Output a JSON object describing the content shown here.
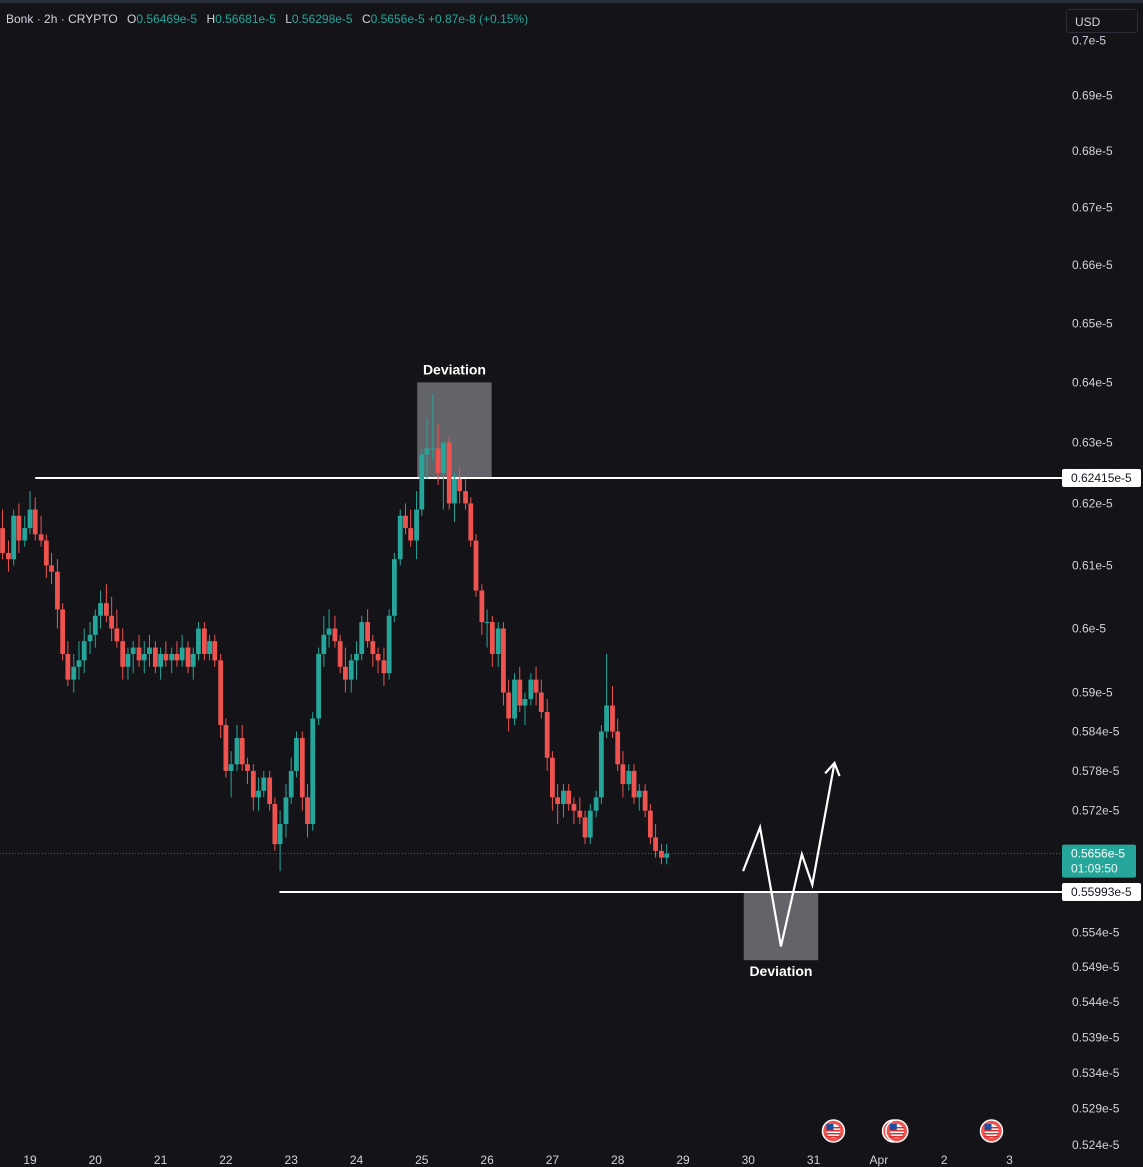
{
  "header": {
    "symbol": "Bonk",
    "interval": "2h",
    "exchange": "CRYPTO",
    "dot": "·",
    "o_label": "O",
    "o_value": "0.56469e-5",
    "h_label": "H",
    "h_value": "0.56681e-5",
    "l_label": "L",
    "l_value": "0.56298e-5",
    "c_label": "C",
    "c_value": "0.5656e-5",
    "change": "+0.87e-8 (+0.15%)"
  },
  "currency_button": "USD",
  "colors": {
    "background": "#131318",
    "up": "#26a69a",
    "down": "#ef5350",
    "axis_text": "#d1d4dc",
    "level_line": "#ffffff",
    "deviation_box": "#7a7b80",
    "current_price_bg": "#26a69a"
  },
  "chart_data": {
    "type": "candlestick",
    "instrument": "Bonk",
    "interval": "2h",
    "x_axis": {
      "tick_labels": [
        "19",
        "20",
        "21",
        "22",
        "23",
        "24",
        "25",
        "26",
        "27",
        "28",
        "29",
        "30",
        "31",
        "Apr",
        "2",
        "3"
      ],
      "range_days": [
        18.5,
        34.0
      ]
    },
    "y_axis": {
      "scale": "log",
      "tick_labels": [
        "0.7e-5",
        "0.69e-5",
        "0.68e-5",
        "0.67e-5",
        "0.66e-5",
        "0.65e-5",
        "0.64e-5",
        "0.63e-5",
        "0.62e-5",
        "0.61e-5",
        "0.6e-5",
        "0.59e-5",
        "0.584e-5",
        "0.578e-5",
        "0.572e-5",
        "0.554e-5",
        "0.549e-5",
        "0.544e-5",
        "0.539e-5",
        "0.534e-5",
        "0.529e-5",
        "0.524e-5"
      ],
      "tick_values": [
        0.7,
        0.69,
        0.68,
        0.67,
        0.66,
        0.65,
        0.64,
        0.63,
        0.62,
        0.61,
        0.6,
        0.59,
        0.584,
        0.578,
        0.572,
        0.554,
        0.549,
        0.544,
        0.539,
        0.534,
        0.529,
        0.524
      ],
      "unit_suffix": "e-5"
    },
    "levels": [
      {
        "price": 0.62415,
        "label": "0.62415e-5",
        "from_day": 19.08
      },
      {
        "price": 0.55993,
        "label": "0.55993e-5",
        "from_day": 22.82
      }
    ],
    "current_price": {
      "price": 0.5656,
      "label": "0.5656e-5",
      "countdown": "01:09:50"
    },
    "annotations": [
      {
        "text": "Deviation",
        "day_start": 24.93,
        "day_end": 26.07,
        "price_top": 0.64,
        "price_bottom": 0.6242,
        "label_position": "top"
      },
      {
        "text": "Deviation",
        "day_start": 29.93,
        "day_end": 31.07,
        "price_top": 0.5599,
        "price_bottom": 0.55,
        "label_position": "bottom"
      }
    ],
    "projection_path": [
      {
        "day": 29.92,
        "price": 0.563
      },
      {
        "day": 30.18,
        "price": 0.5695
      },
      {
        "day": 30.5,
        "price": 0.552
      },
      {
        "day": 30.82,
        "price": 0.5655
      },
      {
        "day": 30.98,
        "price": 0.561
      },
      {
        "day": 31.32,
        "price": 0.5792
      }
    ],
    "event_markers": [
      "US flag",
      "US flag",
      "US flag",
      "US flag"
    ],
    "event_marker_days": [
      31.58,
      32.5,
      32.55,
      34.0
    ],
    "candles": [
      [
        18.5,
        0.622,
        0.623,
        0.614,
        0.616
      ],
      [
        18.58,
        0.616,
        0.619,
        0.611,
        0.612
      ],
      [
        18.67,
        0.612,
        0.614,
        0.609,
        0.611
      ],
      [
        18.75,
        0.611,
        0.619,
        0.61,
        0.618
      ],
      [
        18.83,
        0.618,
        0.62,
        0.612,
        0.614
      ],
      [
        18.92,
        0.614,
        0.618,
        0.613,
        0.616
      ],
      [
        19.0,
        0.616,
        0.622,
        0.615,
        0.619
      ],
      [
        19.08,
        0.619,
        0.621,
        0.614,
        0.615
      ],
      [
        19.17,
        0.615,
        0.618,
        0.613,
        0.614
      ],
      [
        19.25,
        0.614,
        0.615,
        0.608,
        0.61
      ],
      [
        19.33,
        0.61,
        0.612,
        0.607,
        0.609
      ],
      [
        19.42,
        0.609,
        0.611,
        0.6,
        0.603
      ],
      [
        19.5,
        0.603,
        0.604,
        0.595,
        0.596
      ],
      [
        19.58,
        0.596,
        0.598,
        0.591,
        0.592
      ],
      [
        19.67,
        0.592,
        0.596,
        0.59,
        0.594
      ],
      [
        19.75,
        0.594,
        0.598,
        0.592,
        0.595
      ],
      [
        19.83,
        0.595,
        0.6,
        0.593,
        0.598
      ],
      [
        19.92,
        0.598,
        0.601,
        0.596,
        0.599
      ],
      [
        20.0,
        0.599,
        0.603,
        0.597,
        0.602
      ],
      [
        20.08,
        0.602,
        0.606,
        0.6,
        0.604
      ],
      [
        20.17,
        0.604,
        0.607,
        0.601,
        0.602
      ],
      [
        20.25,
        0.602,
        0.605,
        0.598,
        0.6
      ],
      [
        20.33,
        0.6,
        0.603,
        0.597,
        0.598
      ],
      [
        20.42,
        0.598,
        0.6,
        0.592,
        0.594
      ],
      [
        20.5,
        0.594,
        0.597,
        0.592,
        0.596
      ],
      [
        20.58,
        0.596,
        0.598,
        0.593,
        0.597
      ],
      [
        20.67,
        0.597,
        0.599,
        0.594,
        0.595
      ],
      [
        20.75,
        0.595,
        0.598,
        0.593,
        0.596
      ],
      [
        20.83,
        0.596,
        0.599,
        0.594,
        0.597
      ],
      [
        20.92,
        0.597,
        0.598,
        0.593,
        0.594
      ],
      [
        21.0,
        0.594,
        0.597,
        0.592,
        0.596
      ],
      [
        21.08,
        0.596,
        0.598,
        0.594,
        0.595
      ],
      [
        21.17,
        0.595,
        0.597,
        0.593,
        0.596
      ],
      [
        21.25,
        0.596,
        0.598,
        0.594,
        0.595
      ],
      [
        21.33,
        0.595,
        0.599,
        0.594,
        0.597
      ],
      [
        21.42,
        0.597,
        0.598,
        0.593,
        0.594
      ],
      [
        21.5,
        0.594,
        0.597,
        0.592,
        0.596
      ],
      [
        21.58,
        0.596,
        0.601,
        0.595,
        0.6
      ],
      [
        21.67,
        0.6,
        0.601,
        0.595,
        0.596
      ],
      [
        21.75,
        0.596,
        0.599,
        0.595,
        0.598
      ],
      [
        21.83,
        0.598,
        0.599,
        0.594,
        0.595
      ],
      [
        21.92,
        0.595,
        0.596,
        0.583,
        0.585
      ],
      [
        22.0,
        0.585,
        0.586,
        0.577,
        0.578
      ],
      [
        22.08,
        0.578,
        0.581,
        0.574,
        0.579
      ],
      [
        22.17,
        0.579,
        0.585,
        0.578,
        0.583
      ],
      [
        22.25,
        0.583,
        0.585,
        0.578,
        0.579
      ],
      [
        22.33,
        0.579,
        0.58,
        0.576,
        0.578
      ],
      [
        22.42,
        0.578,
        0.579,
        0.572,
        0.574
      ],
      [
        22.5,
        0.574,
        0.577,
        0.572,
        0.575
      ],
      [
        22.58,
        0.575,
        0.578,
        0.574,
        0.577
      ],
      [
        22.67,
        0.577,
        0.578,
        0.572,
        0.573
      ],
      [
        22.75,
        0.573,
        0.574,
        0.566,
        0.567
      ],
      [
        22.83,
        0.567,
        0.572,
        0.563,
        0.57
      ],
      [
        22.92,
        0.57,
        0.576,
        0.568,
        0.574
      ],
      [
        23.0,
        0.574,
        0.58,
        0.573,
        0.578
      ],
      [
        23.08,
        0.578,
        0.584,
        0.577,
        0.583
      ],
      [
        23.17,
        0.583,
        0.584,
        0.572,
        0.574
      ],
      [
        23.25,
        0.574,
        0.576,
        0.568,
        0.57
      ],
      [
        23.33,
        0.57,
        0.587,
        0.569,
        0.586
      ],
      [
        23.42,
        0.586,
        0.597,
        0.585,
        0.596
      ],
      [
        23.5,
        0.596,
        0.602,
        0.594,
        0.599
      ],
      [
        23.58,
        0.599,
        0.603,
        0.597,
        0.6
      ],
      [
        23.67,
        0.6,
        0.602,
        0.597,
        0.598
      ],
      [
        23.75,
        0.598,
        0.599,
        0.593,
        0.594
      ],
      [
        23.83,
        0.594,
        0.597,
        0.59,
        0.592
      ],
      [
        23.92,
        0.592,
        0.596,
        0.59,
        0.595
      ],
      [
        24.0,
        0.595,
        0.598,
        0.592,
        0.596
      ],
      [
        24.08,
        0.596,
        0.602,
        0.595,
        0.601
      ],
      [
        24.17,
        0.601,
        0.603,
        0.597,
        0.598
      ],
      [
        24.25,
        0.598,
        0.599,
        0.594,
        0.596
      ],
      [
        24.33,
        0.596,
        0.597,
        0.593,
        0.595
      ],
      [
        24.42,
        0.595,
        0.597,
        0.591,
        0.593
      ],
      [
        24.5,
        0.593,
        0.603,
        0.592,
        0.602
      ],
      [
        24.58,
        0.602,
        0.612,
        0.601,
        0.611
      ],
      [
        24.67,
        0.611,
        0.619,
        0.61,
        0.618
      ],
      [
        24.75,
        0.618,
        0.62,
        0.615,
        0.616
      ],
      [
        24.83,
        0.616,
        0.619,
        0.613,
        0.614
      ],
      [
        24.92,
        0.614,
        0.622,
        0.611,
        0.619
      ],
      [
        25.0,
        0.619,
        0.629,
        0.618,
        0.628
      ],
      [
        25.08,
        0.628,
        0.634,
        0.624,
        0.629
      ],
      [
        25.17,
        0.629,
        0.638,
        0.627,
        0.629
      ],
      [
        25.25,
        0.629,
        0.633,
        0.623,
        0.625
      ],
      [
        25.33,
        0.625,
        0.63,
        0.619,
        0.63
      ],
      [
        25.42,
        0.63,
        0.631,
        0.619,
        0.62
      ],
      [
        25.5,
        0.62,
        0.625,
        0.617,
        0.624
      ],
      [
        25.58,
        0.624,
        0.626,
        0.62,
        0.622
      ],
      [
        25.67,
        0.622,
        0.624,
        0.619,
        0.62
      ],
      [
        25.75,
        0.62,
        0.621,
        0.613,
        0.614
      ],
      [
        25.83,
        0.614,
        0.615,
        0.605,
        0.606
      ],
      [
        25.92,
        0.606,
        0.607,
        0.599,
        0.601
      ],
      [
        26.0,
        0.601,
        0.603,
        0.597,
        0.601
      ],
      [
        26.08,
        0.601,
        0.602,
        0.594,
        0.596
      ],
      [
        26.17,
        0.596,
        0.601,
        0.594,
        0.6
      ],
      [
        26.25,
        0.6,
        0.601,
        0.588,
        0.59
      ],
      [
        26.33,
        0.59,
        0.592,
        0.584,
        0.586
      ],
      [
        26.42,
        0.586,
        0.593,
        0.585,
        0.592
      ],
      [
        26.5,
        0.592,
        0.594,
        0.587,
        0.588
      ],
      [
        26.58,
        0.588,
        0.59,
        0.585,
        0.589
      ],
      [
        26.67,
        0.589,
        0.593,
        0.588,
        0.592
      ],
      [
        26.75,
        0.592,
        0.594,
        0.588,
        0.59
      ],
      [
        26.83,
        0.59,
        0.592,
        0.586,
        0.587
      ],
      [
        26.92,
        0.587,
        0.589,
        0.578,
        0.58
      ],
      [
        27.0,
        0.58,
        0.581,
        0.572,
        0.574
      ],
      [
        27.08,
        0.574,
        0.576,
        0.57,
        0.573
      ],
      [
        27.17,
        0.573,
        0.576,
        0.571,
        0.575
      ],
      [
        27.25,
        0.575,
        0.576,
        0.572,
        0.573
      ],
      [
        27.33,
        0.573,
        0.574,
        0.57,
        0.572
      ],
      [
        27.42,
        0.572,
        0.574,
        0.57,
        0.571
      ],
      [
        27.5,
        0.571,
        0.572,
        0.567,
        0.568
      ],
      [
        27.58,
        0.568,
        0.573,
        0.567,
        0.572
      ],
      [
        27.67,
        0.572,
        0.575,
        0.571,
        0.574
      ],
      [
        27.75,
        0.574,
        0.585,
        0.573,
        0.584
      ],
      [
        27.83,
        0.584,
        0.596,
        0.583,
        0.588
      ],
      [
        27.92,
        0.588,
        0.591,
        0.583,
        0.584
      ],
      [
        28.0,
        0.584,
        0.586,
        0.578,
        0.579
      ],
      [
        28.08,
        0.579,
        0.581,
        0.574,
        0.576
      ],
      [
        28.17,
        0.576,
        0.579,
        0.575,
        0.578
      ],
      [
        28.25,
        0.578,
        0.579,
        0.573,
        0.574
      ],
      [
        28.33,
        0.574,
        0.576,
        0.572,
        0.575
      ],
      [
        28.42,
        0.575,
        0.576,
        0.571,
        0.572
      ],
      [
        28.5,
        0.572,
        0.573,
        0.567,
        0.568
      ],
      [
        28.58,
        0.568,
        0.57,
        0.565,
        0.566
      ],
      [
        28.67,
        0.566,
        0.567,
        0.564,
        0.565
      ],
      [
        28.75,
        0.565,
        0.567,
        0.564,
        0.5656
      ]
    ]
  }
}
